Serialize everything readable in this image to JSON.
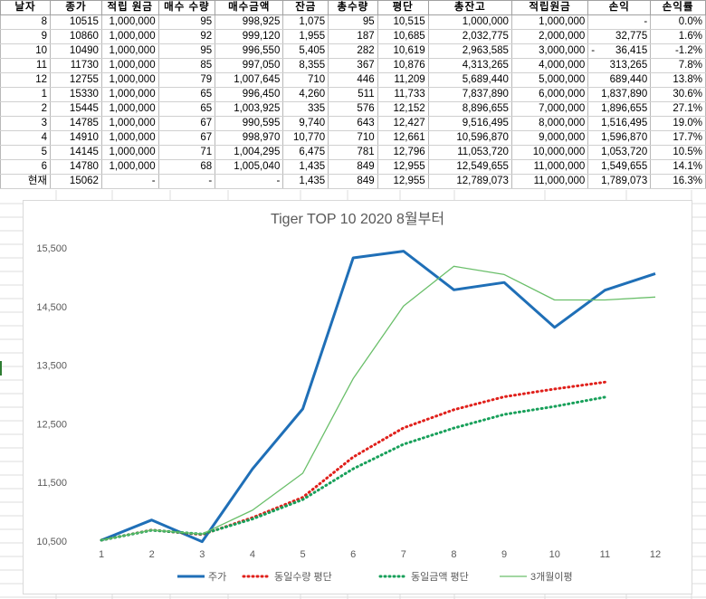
{
  "sheet": {
    "headers": [
      "날자",
      "종가",
      "적립 원금",
      "매수 수량",
      "매수금액",
      "잔금",
      "총수량",
      "평단",
      "총잔고",
      "적립원금",
      "손익",
      "손익률"
    ],
    "rows": [
      [
        "8",
        "10515",
        "1,000,000",
        "95",
        "998,925",
        "1,075",
        "95",
        "10,515",
        "1,000,000",
        "1,000,000",
        "-",
        "0.0%"
      ],
      [
        "9",
        "10860",
        "1,000,000",
        "92",
        "999,120",
        "1,955",
        "187",
        "10,685",
        "2,032,775",
        "2,000,000",
        "32,775",
        "1.6%"
      ],
      [
        "10",
        "10490",
        "1,000,000",
        "95",
        "996,550",
        "5,405",
        "282",
        "10,619",
        "2,963,585",
        "3,000,000",
        "36,415",
        "-1.2%"
      ],
      [
        "11",
        "11730",
        "1,000,000",
        "85",
        "997,050",
        "8,355",
        "367",
        "10,876",
        "4,313,265",
        "4,000,000",
        "313,265",
        "7.8%"
      ],
      [
        "12",
        "12755",
        "1,000,000",
        "79",
        "1,007,645",
        "710",
        "446",
        "11,209",
        "5,689,440",
        "5,000,000",
        "689,440",
        "13.8%"
      ],
      [
        "1",
        "15330",
        "1,000,000",
        "65",
        "996,450",
        "4,260",
        "511",
        "11,733",
        "7,837,890",
        "6,000,000",
        "1,837,890",
        "30.6%"
      ],
      [
        "2",
        "15445",
        "1,000,000",
        "65",
        "1,003,925",
        "335",
        "576",
        "12,152",
        "8,896,655",
        "7,000,000",
        "1,896,655",
        "27.1%"
      ],
      [
        "3",
        "14785",
        "1,000,000",
        "67",
        "990,595",
        "9,740",
        "643",
        "12,427",
        "9,516,495",
        "8,000,000",
        "1,516,495",
        "19.0%"
      ],
      [
        "4",
        "14910",
        "1,000,000",
        "67",
        "998,970",
        "10,770",
        "710",
        "12,661",
        "10,596,870",
        "9,000,000",
        "1,596,870",
        "17.7%"
      ],
      [
        "5",
        "14145",
        "1,000,000",
        "71",
        "1,004,295",
        "6,475",
        "781",
        "12,796",
        "11,053,720",
        "10,000,000",
        "1,053,720",
        "10.5%"
      ],
      [
        "6",
        "14780",
        "1,000,000",
        "68",
        "1,005,040",
        "1,435",
        "849",
        "12,955",
        "12,549,655",
        "11,000,000",
        "1,549,655",
        "14.1%"
      ],
      [
        "현재",
        "15062",
        "-",
        "-",
        "-",
        "1,435",
        "849",
        "12,955",
        "12,789,073",
        "11,000,000",
        "1,789,073",
        "16.3%"
      ]
    ],
    "neg_prefix_row": 2,
    "neg_prefix_symbol": "-"
  },
  "chart_data": {
    "type": "line",
    "title": "Tiger TOP 10 2020 8월부터",
    "x": [
      1,
      2,
      3,
      4,
      5,
      6,
      7,
      8,
      9,
      10,
      11,
      12
    ],
    "xlim": [
      1,
      12
    ],
    "ylim": [
      10500,
      15500
    ],
    "yticks": [
      10500,
      11500,
      12500,
      13500,
      14500,
      15500
    ],
    "ytick_labels": [
      "10,500",
      "11,500",
      "12,500",
      "13,500",
      "14,500",
      "15,500"
    ],
    "grid": false,
    "legend_position": "bottom",
    "series": [
      {
        "name": "주가",
        "color": "#1f6fb7",
        "style": "solid",
        "width": 3,
        "values": [
          10515,
          10860,
          10490,
          11730,
          12755,
          15330,
          15445,
          14785,
          14910,
          14145,
          14780,
          15062
        ]
      },
      {
        "name": "동일수량 평단",
        "color": "#e0201b",
        "style": "dotted",
        "width": 3,
        "values": [
          10515,
          10688,
          10611,
          10899,
          11246,
          11934,
          12431,
          12741,
          12962,
          13094,
          13212,
          null
        ]
      },
      {
        "name": "동일금액 평단",
        "color": "#18a05a",
        "style": "dotted",
        "width": 3,
        "values": [
          10515,
          10685,
          10619,
          10876,
          11209,
          11733,
          12152,
          12427,
          12661,
          12796,
          12955,
          null
        ]
      },
      {
        "name": "3개월이평",
        "color": "#6abf6a",
        "style": "solid",
        "width": 1.3,
        "values": [
          10515,
          10688,
          10622,
          11027,
          11658,
          13272,
          14510,
          15187,
          15047,
          14613,
          14612,
          14662
        ]
      }
    ]
  }
}
